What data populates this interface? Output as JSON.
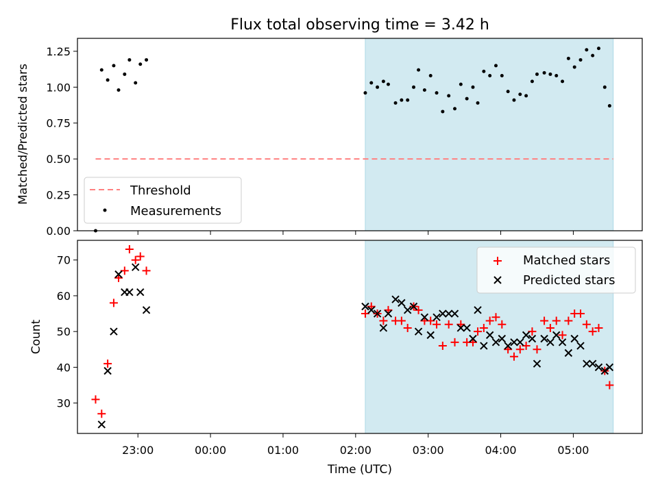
{
  "title": "Flux total observing time = 3.42 h",
  "colors": {
    "shade": "#add8e6",
    "threshold": "#ff8080",
    "matched": "#ff0000",
    "predicted": "#000000"
  },
  "chart_data": [
    {
      "type": "scatter",
      "panel": "top",
      "title": "Flux total observing time = 3.42 h",
      "xlabel": "",
      "ylabel": "Matched/Predicted stars",
      "x_axis": "time (UTC, hours; values after midnight > 24)",
      "xlim": [
        "22:10",
        "05:57"
      ],
      "ylim": [
        0,
        1.34
      ],
      "yticks": [
        "0.00",
        "0.25",
        "0.50",
        "0.75",
        "1.00",
        "1.25"
      ],
      "shaded_interval": [
        "02:08",
        "05:33"
      ],
      "threshold": {
        "name": "Threshold",
        "y": 0.5,
        "x_range": [
          "22:25",
          "05:33"
        ]
      },
      "legend": {
        "placement": "lower-left",
        "entries": [
          "Threshold",
          "Measurements"
        ]
      },
      "series": [
        {
          "name": "Measurements",
          "points": [
            [
              "22:25",
              0.0
            ],
            [
              "22:30",
              1.12
            ],
            [
              "22:35",
              1.05
            ],
            [
              "22:40",
              1.15
            ],
            [
              "22:44",
              0.98
            ],
            [
              "22:49",
              1.09
            ],
            [
              "22:53",
              1.19
            ],
            [
              "22:58",
              1.03
            ],
            [
              "23:02",
              1.16
            ],
            [
              "23:07",
              1.19
            ],
            [
              "02:08",
              0.96
            ],
            [
              "02:13",
              1.03
            ],
            [
              "02:18",
              1.0
            ],
            [
              "02:23",
              1.04
            ],
            [
              "02:27",
              1.02
            ],
            [
              "02:33",
              0.89
            ],
            [
              "02:38",
              0.91
            ],
            [
              "02:43",
              0.91
            ],
            [
              "02:48",
              1.0
            ],
            [
              "02:52",
              1.12
            ],
            [
              "02:57",
              0.98
            ],
            [
              "03:02",
              1.08
            ],
            [
              "03:07",
              0.96
            ],
            [
              "03:12",
              0.83
            ],
            [
              "03:17",
              0.94
            ],
            [
              "03:22",
              0.85
            ],
            [
              "03:27",
              1.02
            ],
            [
              "03:32",
              0.92
            ],
            [
              "03:37",
              1.0
            ],
            [
              "03:41",
              0.89
            ],
            [
              "03:46",
              1.11
            ],
            [
              "03:51",
              1.08
            ],
            [
              "03:56",
              1.15
            ],
            [
              "04:01",
              1.08
            ],
            [
              "04:06",
              0.97
            ],
            [
              "04:11",
              0.91
            ],
            [
              "04:16",
              0.95
            ],
            [
              "04:21",
              0.94
            ],
            [
              "04:26",
              1.04
            ],
            [
              "04:30",
              1.09
            ],
            [
              "04:36",
              1.1
            ],
            [
              "04:41",
              1.09
            ],
            [
              "04:46",
              1.08
            ],
            [
              "04:51",
              1.04
            ],
            [
              "04:56",
              1.2
            ],
            [
              "05:01",
              1.14
            ],
            [
              "05:06",
              1.19
            ],
            [
              "05:11",
              1.26
            ],
            [
              "05:16",
              1.22
            ],
            [
              "05:21",
              1.27
            ],
            [
              "05:26",
              1.0
            ],
            [
              "05:30",
              0.87
            ]
          ]
        }
      ]
    },
    {
      "type": "scatter",
      "panel": "bottom",
      "xlabel": "Time (UTC)",
      "ylabel": "Count",
      "xlim": [
        "22:10",
        "05:57"
      ],
      "ylim": [
        21.5,
        75.5
      ],
      "yticks": [
        "30",
        "40",
        "50",
        "60",
        "70"
      ],
      "xticks": [
        "23:00",
        "00:00",
        "01:00",
        "02:00",
        "03:00",
        "04:00",
        "05:00"
      ],
      "shaded_interval": [
        "02:08",
        "05:33"
      ],
      "legend": {
        "placement": "top-right",
        "entries": [
          "Matched stars",
          "Predicted stars"
        ]
      },
      "series": [
        {
          "name": "Matched stars",
          "marker": "plus",
          "points": [
            [
              "22:25",
              31
            ],
            [
              "22:30",
              27
            ],
            [
              "22:35",
              41
            ],
            [
              "22:40",
              58
            ],
            [
              "22:44",
              65
            ],
            [
              "22:49",
              67
            ],
            [
              "22:53",
              73
            ],
            [
              "22:58",
              70
            ],
            [
              "23:02",
              71
            ],
            [
              "23:07",
              67
            ],
            [
              "02:08",
              55
            ],
            [
              "02:13",
              57
            ],
            [
              "02:18",
              55
            ],
            [
              "02:23",
              53
            ],
            [
              "02:27",
              56
            ],
            [
              "02:33",
              53
            ],
            [
              "02:38",
              53
            ],
            [
              "02:43",
              51
            ],
            [
              "02:48",
              57
            ],
            [
              "02:52",
              56
            ],
            [
              "02:57",
              53
            ],
            [
              "03:02",
              53
            ],
            [
              "03:07",
              52
            ],
            [
              "03:12",
              46
            ],
            [
              "03:17",
              52
            ],
            [
              "03:22",
              47
            ],
            [
              "03:27",
              52
            ],
            [
              "03:32",
              47
            ],
            [
              "03:37",
              47
            ],
            [
              "03:41",
              50
            ],
            [
              "03:46",
              51
            ],
            [
              "03:51",
              53
            ],
            [
              "03:56",
              54
            ],
            [
              "04:01",
              52
            ],
            [
              "04:06",
              45
            ],
            [
              "04:11",
              43
            ],
            [
              "04:16",
              45
            ],
            [
              "04:21",
              46
            ],
            [
              "04:26",
              50
            ],
            [
              "04:30",
              45
            ],
            [
              "04:36",
              53
            ],
            [
              "04:41",
              51
            ],
            [
              "04:46",
              53
            ],
            [
              "04:51",
              49
            ],
            [
              "04:56",
              53
            ],
            [
              "05:01",
              55
            ],
            [
              "05:06",
              55
            ],
            [
              "05:11",
              52
            ],
            [
              "05:16",
              50
            ],
            [
              "05:21",
              51
            ],
            [
              "05:26",
              39
            ],
            [
              "05:30",
              35
            ]
          ]
        },
        {
          "name": "Predicted stars",
          "marker": "x",
          "points": [
            [
              "22:30",
              24
            ],
            [
              "22:35",
              39
            ],
            [
              "22:40",
              50
            ],
            [
              "22:44",
              66
            ],
            [
              "22:49",
              61
            ],
            [
              "22:53",
              61
            ],
            [
              "22:58",
              68
            ],
            [
              "23:02",
              61
            ],
            [
              "23:07",
              56
            ],
            [
              "02:08",
              57
            ],
            [
              "02:13",
              56
            ],
            [
              "02:18",
              55
            ],
            [
              "02:23",
              51
            ],
            [
              "02:27",
              55
            ],
            [
              "02:33",
              59
            ],
            [
              "02:38",
              58
            ],
            [
              "02:43",
              56
            ],
            [
              "02:48",
              57
            ],
            [
              "02:52",
              50
            ],
            [
              "02:57",
              54
            ],
            [
              "03:02",
              49
            ],
            [
              "03:07",
              54
            ],
            [
              "03:12",
              55
            ],
            [
              "03:17",
              55
            ],
            [
              "03:22",
              55
            ],
            [
              "03:27",
              51
            ],
            [
              "03:32",
              51
            ],
            [
              "03:37",
              48
            ],
            [
              "03:41",
              56
            ],
            [
              "03:46",
              46
            ],
            [
              "03:51",
              49
            ],
            [
              "03:56",
              47
            ],
            [
              "04:01",
              48
            ],
            [
              "04:06",
              46
            ],
            [
              "04:11",
              47
            ],
            [
              "04:16",
              47
            ],
            [
              "04:21",
              49
            ],
            [
              "04:26",
              48
            ],
            [
              "04:30",
              41
            ],
            [
              "04:36",
              48
            ],
            [
              "04:41",
              47
            ],
            [
              "04:46",
              49
            ],
            [
              "04:51",
              47
            ],
            [
              "04:56",
              44
            ],
            [
              "05:01",
              48
            ],
            [
              "05:06",
              46
            ],
            [
              "05:11",
              41
            ],
            [
              "05:16",
              41
            ],
            [
              "05:21",
              40
            ],
            [
              "05:26",
              39
            ],
            [
              "05:30",
              40
            ]
          ]
        }
      ]
    }
  ]
}
